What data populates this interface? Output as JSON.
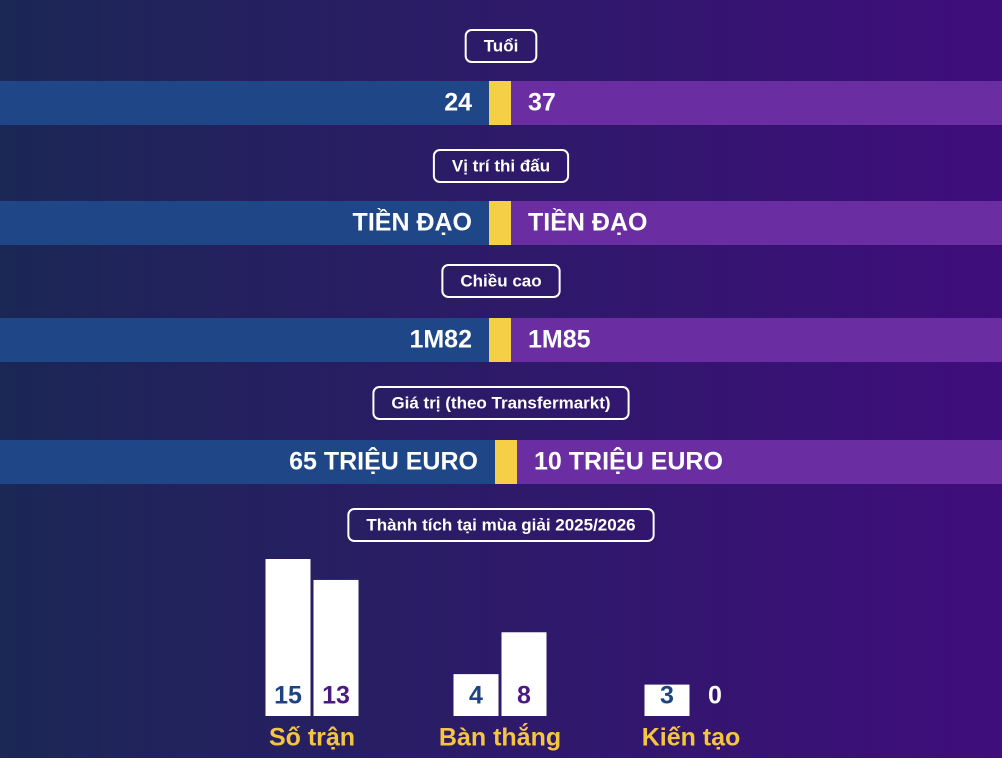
{
  "comparisons": [
    {
      "label": "Tuổi",
      "left": "24",
      "right": "37"
    },
    {
      "label": "Vị trí thi đấu",
      "left": "TIỀN ĐẠO",
      "right": "TIỀN ĐẠO"
    },
    {
      "label": "Chiều cao",
      "left": "1M82",
      "right": "1M85"
    },
    {
      "label": "Giá trị (theo Transfermarkt)",
      "left": "65 TRIỆU EURO",
      "right": "10 TRIỆU EURO"
    }
  ],
  "chart_data": {
    "type": "bar",
    "title": "Thành tích tại mùa giải 2025/2026",
    "categories": [
      "Số trận",
      "Bàn thắng",
      "Kiến tạo"
    ],
    "bar_color": "#ffffff",
    "series": [
      {
        "color": "#1f4382",
        "values": [
          15,
          4,
          3
        ]
      },
      {
        "color": "#4b1a80",
        "values": [
          13,
          8,
          0
        ]
      }
    ]
  }
}
